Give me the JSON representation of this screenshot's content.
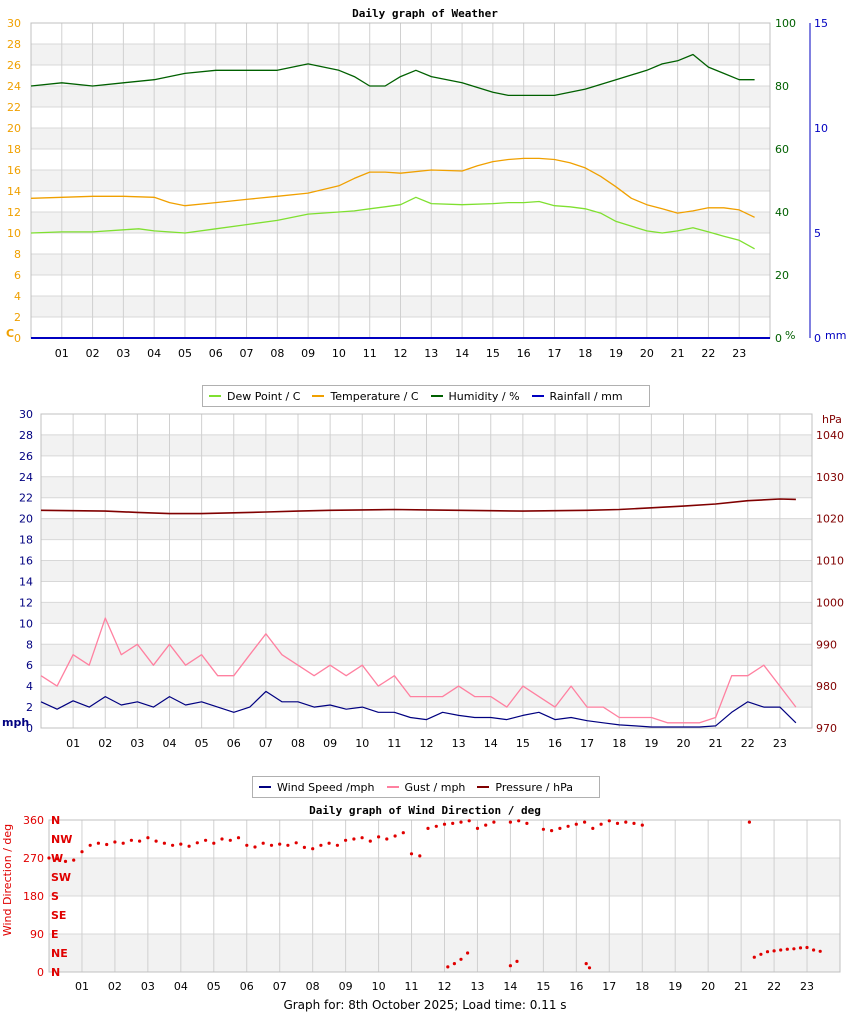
{
  "hours": [
    "01",
    "02",
    "03",
    "04",
    "05",
    "06",
    "07",
    "08",
    "09",
    "10",
    "11",
    "12",
    "13",
    "14",
    "15",
    "16",
    "17",
    "18",
    "19",
    "20",
    "21",
    "22",
    "23"
  ],
  "colors": {
    "dew": "#7fe030",
    "temp": "#f0a000",
    "humidity": "#006000",
    "rain": "#0000c0",
    "wind": "#000080",
    "gust": "#ff80a0",
    "pressure": "#800000",
    "dir": "#e00000",
    "left_axis_weather": "#f0a000",
    "right_axis_humidity": "#006000",
    "right_axis_rain": "#0000c0",
    "left_axis_wind": "#000080",
    "right_axis_pressure": "#800000"
  },
  "weather": {
    "title": "Daily graph of Weather",
    "left_unit": "C",
    "right_unit1": "%",
    "right_unit2": "mm",
    "legend": [
      "Dew Point / C",
      "Temperature / C",
      "Humidity / %",
      "Rainfall / mm"
    ]
  },
  "wind": {
    "left_unit": "mph",
    "right_unit": "hPa",
    "legend": [
      "Wind Speed /mph",
      "Gust / mph",
      "Pressure / hPa"
    ]
  },
  "direction": {
    "title": "Daily graph of Wind Direction / deg",
    "ylabel": "Wind Direction / deg"
  },
  "footer": "Graph for: 8th October 2025; Load time: 0.11 s",
  "chart_data": [
    {
      "type": "line",
      "title": "Daily graph of Weather",
      "x_unit": "hour",
      "xlim": [
        0,
        24
      ],
      "axes": {
        "left": {
          "label": "C",
          "ylim": [
            0,
            30
          ],
          "ticks": [
            0,
            2,
            4,
            6,
            8,
            10,
            12,
            14,
            16,
            18,
            20,
            22,
            24,
            26,
            28,
            30
          ]
        },
        "right_humidity": {
          "label": "%",
          "ylim": [
            0,
            100
          ],
          "ticks": [
            0,
            20,
            40,
            60,
            80,
            100
          ]
        },
        "right_rain": {
          "label": "mm",
          "ylim": [
            0,
            15
          ],
          "ticks": [
            0,
            5,
            10,
            15
          ]
        }
      },
      "grid": true,
      "legend_position": "bottom",
      "series": [
        {
          "name": "Dew Point / C",
          "axis": "left",
          "x": [
            0,
            1,
            2,
            3,
            3.5,
            4,
            5,
            6,
            7,
            8,
            9,
            10,
            10.5,
            11,
            11.5,
            12,
            12.5,
            13,
            14,
            15,
            15.5,
            16,
            16.5,
            17,
            17.5,
            18,
            18.5,
            19,
            20,
            20.5,
            21,
            21.5,
            22,
            22.5,
            23,
            23.5
          ],
          "y": [
            10.0,
            10.1,
            10.1,
            10.3,
            10.4,
            10.2,
            10.0,
            10.4,
            10.8,
            11.2,
            11.8,
            12.0,
            12.1,
            12.3,
            12.5,
            12.7,
            13.4,
            12.8,
            12.7,
            12.8,
            12.9,
            12.9,
            13.0,
            12.6,
            12.5,
            12.3,
            11.9,
            11.1,
            10.2,
            10.0,
            10.2,
            10.5,
            10.1,
            9.7,
            9.3,
            8.5
          ]
        },
        {
          "name": "Temperature / C",
          "axis": "left",
          "x": [
            0,
            1,
            2,
            3,
            4,
            4.5,
            5,
            6,
            7,
            8,
            9,
            10,
            10.5,
            11,
            11.5,
            12,
            13,
            14,
            14.5,
            15,
            15.5,
            16,
            16.5,
            17,
            17.5,
            18,
            18.5,
            19,
            19.5,
            20,
            20.5,
            21,
            21.5,
            22,
            22.5,
            23,
            23.5
          ],
          "y": [
            13.3,
            13.4,
            13.5,
            13.5,
            13.4,
            12.9,
            12.6,
            12.9,
            13.2,
            13.5,
            13.8,
            14.5,
            15.2,
            15.8,
            15.8,
            15.7,
            16.0,
            15.9,
            16.4,
            16.8,
            17.0,
            17.1,
            17.1,
            17.0,
            16.7,
            16.2,
            15.4,
            14.4,
            13.3,
            12.7,
            12.3,
            11.9,
            12.1,
            12.4,
            12.4,
            12.2,
            11.5
          ]
        },
        {
          "name": "Humidity / %",
          "axis": "right_humidity",
          "x": [
            0,
            1,
            2,
            3,
            4,
            5,
            6,
            7,
            8,
            9,
            10,
            10.5,
            11,
            11.5,
            12,
            12.5,
            13,
            14,
            15,
            15.5,
            16,
            17,
            18,
            19,
            20,
            20.5,
            21,
            21.5,
            22,
            22.5,
            23,
            23.5
          ],
          "y": [
            80,
            81,
            80,
            81,
            82,
            84,
            85,
            85,
            85,
            87,
            85,
            83,
            80,
            80,
            83,
            85,
            83,
            81,
            78,
            77,
            77,
            77,
            79,
            82,
            85,
            87,
            88,
            90,
            86,
            84,
            82,
            82
          ]
        },
        {
          "name": "Rainfall / mm",
          "axis": "right_rain",
          "x": [
            0,
            24
          ],
          "y": [
            0,
            0
          ]
        }
      ]
    },
    {
      "type": "line",
      "title": "",
      "x_unit": "hour",
      "xlim": [
        0,
        24
      ],
      "axes": {
        "left": {
          "label": "mph",
          "ylim": [
            0,
            30
          ],
          "ticks": [
            0,
            2,
            4,
            6,
            8,
            10,
            12,
            14,
            16,
            18,
            20,
            22,
            24,
            26,
            28,
            30
          ]
        },
        "right": {
          "label": "hPa",
          "ylim": [
            970,
            1045
          ],
          "ticks": [
            970,
            980,
            990,
            1000,
            1010,
            1020,
            1030,
            1040
          ]
        }
      },
      "grid": true,
      "legend_position": "bottom",
      "series": [
        {
          "name": "Wind Speed /mph",
          "axis": "left",
          "x": [
            0,
            0.5,
            1,
            1.5,
            2,
            2.5,
            3,
            3.5,
            4,
            4.5,
            5,
            5.5,
            6,
            6.5,
            7,
            7.5,
            8,
            8.5,
            9,
            9.5,
            10,
            10.5,
            11,
            11.5,
            12,
            12.5,
            13,
            13.5,
            14,
            14.5,
            15,
            15.5,
            16,
            16.5,
            17,
            17.5,
            18,
            18.5,
            19,
            19.5,
            20,
            20.5,
            21,
            21.5,
            22,
            22.5,
            23,
            23.5
          ],
          "y": [
            2.5,
            1.8,
            2.6,
            2.0,
            3.0,
            2.2,
            2.5,
            2.0,
            3.0,
            2.2,
            2.5,
            2.0,
            1.5,
            2.0,
            3.5,
            2.5,
            2.5,
            2.0,
            2.2,
            1.8,
            2.0,
            1.5,
            1.5,
            1.0,
            0.8,
            1.5,
            1.2,
            1.0,
            1.0,
            0.8,
            1.2,
            1.5,
            0.8,
            1.0,
            0.7,
            0.5,
            0.3,
            0.2,
            0.1,
            0.1,
            0.1,
            0.1,
            0.2,
            1.5,
            2.5,
            2.0,
            2.0,
            0.5
          ]
        },
        {
          "name": "Gust / mph",
          "axis": "left",
          "x": [
            0,
            0.5,
            1,
            1.5,
            2,
            2.5,
            3,
            3.5,
            4,
            4.5,
            5,
            5.5,
            6,
            6.5,
            7,
            7.5,
            8,
            8.5,
            9,
            9.5,
            10,
            10.5,
            11,
            11.5,
            12,
            12.5,
            13,
            13.5,
            14,
            14.5,
            15,
            15.5,
            16,
            16.5,
            17,
            17.5,
            18,
            18.5,
            19,
            19.5,
            20,
            20.5,
            21,
            21.5,
            22,
            22.5,
            23,
            23.5
          ],
          "y": [
            5,
            4,
            7,
            6,
            10.5,
            7,
            8,
            6,
            8,
            6,
            7,
            5,
            5,
            7,
            9,
            7,
            6,
            5,
            6,
            5,
            6,
            4,
            5,
            3,
            3,
            3,
            4,
            3,
            3,
            2,
            4,
            3,
            2,
            4,
            2,
            2,
            1,
            1,
            1,
            0.5,
            0.5,
            0.5,
            1,
            5,
            5,
            6,
            4,
            2
          ]
        },
        {
          "name": "Pressure / hPa",
          "axis": "right",
          "x": [
            0,
            1,
            2,
            3,
            4,
            5,
            6,
            7,
            8,
            9,
            10,
            11,
            12,
            13,
            14,
            15,
            16,
            17,
            18,
            19,
            20,
            21,
            22,
            23,
            23.5
          ],
          "y": [
            1022.0,
            1021.9,
            1021.8,
            1021.5,
            1021.2,
            1021.2,
            1021.4,
            1021.6,
            1021.8,
            1022.0,
            1022.1,
            1022.2,
            1022.1,
            1022.0,
            1021.9,
            1021.8,
            1021.9,
            1022.0,
            1022.2,
            1022.6,
            1023.0,
            1023.5,
            1024.3,
            1024.7,
            1024.6
          ]
        }
      ]
    },
    {
      "type": "scatter",
      "title": "Daily graph of Wind Direction / deg",
      "ylabel": "Wind Direction / deg",
      "x_unit": "hour",
      "xlim": [
        0,
        24
      ],
      "ylim": [
        0,
        360
      ],
      "yticks": [
        0,
        90,
        180,
        270,
        360
      ],
      "compass_labels": [
        "N",
        "NE",
        "E",
        "SE",
        "S",
        "SW",
        "W",
        "NW",
        "N"
      ],
      "grid": true,
      "series": [
        {
          "name": "",
          "x": [
            0,
            0.25,
            0.5,
            0.75,
            1,
            1.25,
            1.5,
            1.75,
            2,
            2.25,
            2.5,
            2.75,
            3,
            3.25,
            3.5,
            3.75,
            4,
            4.25,
            4.5,
            4.75,
            5,
            5.25,
            5.5,
            5.75,
            6,
            6.25,
            6.5,
            6.75,
            7,
            7.25,
            7.5,
            7.75,
            8,
            8.25,
            8.5,
            8.75,
            9,
            9.25,
            9.5,
            9.75,
            10,
            10.25,
            10.5,
            10.75,
            11,
            11.25,
            11.5,
            11.75,
            12,
            12.25,
            12.5,
            12.75,
            13,
            13.25,
            13.5,
            14,
            14.25,
            14.5,
            15,
            15.25,
            15.5,
            15.75,
            16,
            16.25,
            16.5,
            16.75,
            17,
            17.25,
            17.5,
            17.75,
            18,
            21.25,
            12.1,
            12.3,
            12.5,
            12.7,
            14.0,
            14.2,
            16.3,
            16.4,
            21.4,
            21.6,
            21.8,
            22,
            22.2,
            22.4,
            22.6,
            22.8,
            23,
            23.2,
            23.4
          ],
          "y": [
            270,
            268,
            262,
            265,
            285,
            300,
            305,
            302,
            308,
            305,
            312,
            310,
            318,
            310,
            305,
            300,
            303,
            298,
            306,
            312,
            305,
            315,
            312,
            318,
            300,
            296,
            305,
            300,
            303,
            300,
            306,
            295,
            292,
            300,
            305,
            300,
            312,
            315,
            318,
            310,
            320,
            315,
            322,
            330,
            280,
            275,
            340,
            345,
            350,
            352,
            355,
            358,
            340,
            348,
            355,
            355,
            358,
            352,
            338,
            335,
            340,
            345,
            350,
            355,
            340,
            350,
            358,
            352,
            355,
            352,
            348,
            355,
            12,
            20,
            30,
            45,
            15,
            25,
            20,
            10,
            35,
            42,
            48,
            50,
            52,
            54,
            55,
            57,
            58,
            52,
            49
          ]
        }
      ]
    }
  ]
}
